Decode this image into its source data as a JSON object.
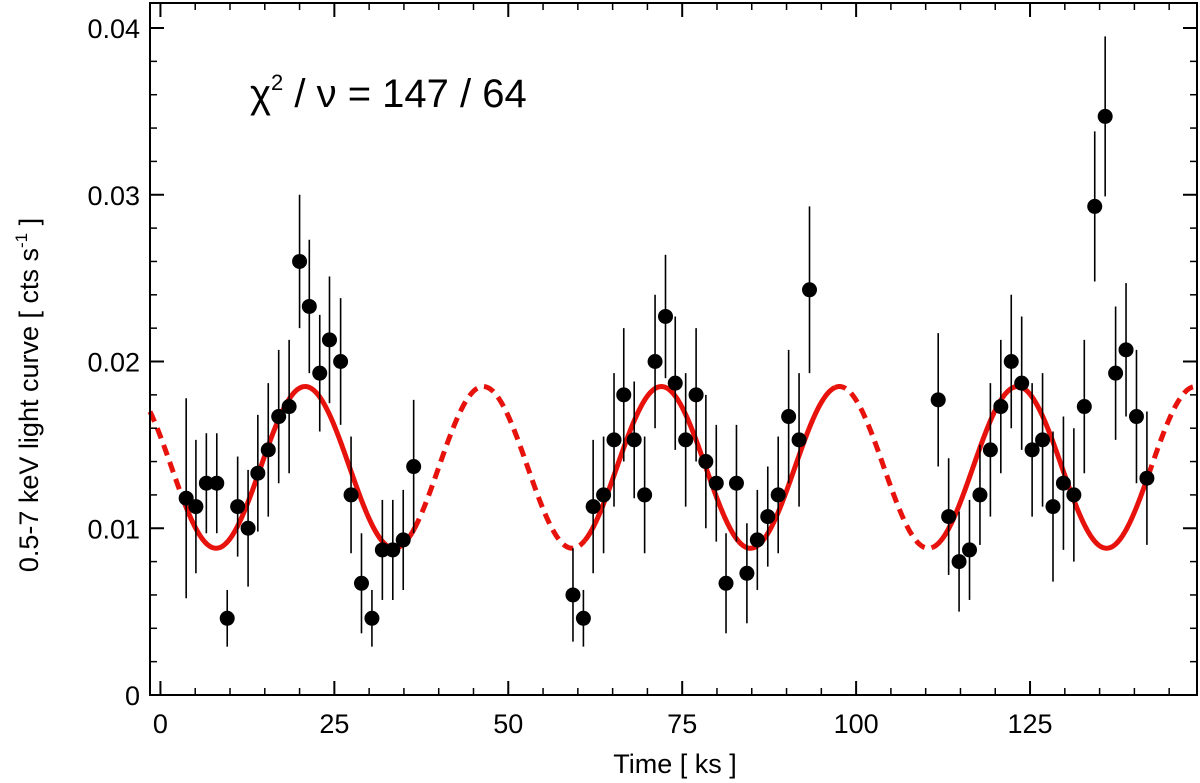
{
  "chart_data": {
    "type": "scatter",
    "title": "",
    "xlabel": "Time [ ks ]",
    "ylabel_main": "0.5-7 keV light curve [ cts s",
    "ylabel_sup": "-1",
    "ylabel_end": " ]",
    "xlim": [
      -1.5,
      149
    ],
    "ylim": [
      0,
      0.0415
    ],
    "xticks": [
      0,
      25,
      50,
      75,
      100,
      125
    ],
    "xtick_labels": [
      "0",
      "25",
      "50",
      "75",
      "100",
      "125"
    ],
    "yticks": [
      0,
      0.01,
      0.02,
      0.03,
      0.04
    ],
    "ytick_labels": [
      "0",
      "0.01",
      "0.02",
      "0.03",
      "0.04"
    ],
    "annotation": {
      "chi": "χ",
      "sup": "2",
      "rest": " / ν = 147 / 64"
    },
    "model": {
      "name": "sinusoid",
      "mean": 0.01365,
      "amplitude": 0.00485,
      "period_ks": 25.6,
      "peak_time_ks": 20.8,
      "color": "#e8120c",
      "solid_segments": [
        [
          3.5,
          36.5
        ],
        [
          61.0,
          97.0
        ],
        [
          111.0,
          142.0
        ]
      ],
      "dashed_segments": [
        [
          -1.5,
          3.5
        ],
        [
          36.5,
          61.0
        ],
        [
          97.0,
          111.0
        ],
        [
          142.0,
          149.0
        ]
      ]
    },
    "series": [
      {
        "name": "data",
        "color": "#000000",
        "x": [
          3.7,
          5.1,
          6.6,
          8.1,
          9.6,
          11.1,
          12.6,
          14.0,
          15.5,
          17.0,
          18.5,
          20.0,
          21.4,
          22.9,
          24.3,
          25.9,
          27.4,
          28.9,
          30.4,
          31.9,
          33.4,
          34.9,
          36.4,
          59.3,
          60.8,
          62.2,
          63.7,
          65.2,
          66.6,
          68.1,
          69.6,
          71.1,
          72.6,
          74.0,
          75.5,
          77.0,
          78.4,
          79.9,
          81.3,
          82.8,
          84.3,
          85.8,
          87.3,
          88.8,
          90.3,
          91.8,
          93.3,
          111.8,
          113.3,
          114.8,
          116.3,
          117.8,
          119.3,
          120.8,
          122.3,
          123.8,
          125.3,
          126.8,
          128.3,
          129.8,
          131.3,
          132.8,
          134.3,
          135.8,
          137.3,
          138.8,
          140.3,
          141.8
        ],
        "y": [
          0.0118,
          0.0113,
          0.0127,
          0.0127,
          0.0046,
          0.0113,
          0.01,
          0.0133,
          0.0147,
          0.0167,
          0.0173,
          0.026,
          0.0233,
          0.0193,
          0.0213,
          0.02,
          0.012,
          0.0067,
          0.0046,
          0.0087,
          0.0087,
          0.0093,
          0.0137,
          0.006,
          0.0046,
          0.0113,
          0.012,
          0.0153,
          0.018,
          0.0153,
          0.012,
          0.02,
          0.0227,
          0.0187,
          0.0153,
          0.018,
          0.014,
          0.0127,
          0.0067,
          0.0127,
          0.0073,
          0.0093,
          0.0107,
          0.012,
          0.0167,
          0.0153,
          0.0243,
          0.0177,
          0.0107,
          0.008,
          0.0087,
          0.012,
          0.0147,
          0.0173,
          0.02,
          0.0187,
          0.0147,
          0.0153,
          0.0113,
          0.0127,
          0.012,
          0.0173,
          0.0293,
          0.0347,
          0.0193,
          0.0207,
          0.0167,
          0.013
        ],
        "yerr": [
          0.006,
          0.004,
          0.003,
          0.003,
          0.0017,
          0.003,
          0.0035,
          0.0035,
          0.004,
          0.004,
          0.004,
          0.004,
          0.004,
          0.0035,
          0.0038,
          0.0038,
          0.0035,
          0.003,
          0.0017,
          0.003,
          0.003,
          0.003,
          0.004,
          0.0028,
          0.0017,
          0.004,
          0.0035,
          0.004,
          0.004,
          0.0035,
          0.0035,
          0.004,
          0.0037,
          0.004,
          0.004,
          0.004,
          0.004,
          0.0035,
          0.003,
          0.0035,
          0.003,
          0.003,
          0.003,
          0.0035,
          0.004,
          0.004,
          0.005,
          0.004,
          0.0035,
          0.003,
          0.003,
          0.003,
          0.004,
          0.004,
          0.004,
          0.004,
          0.004,
          0.004,
          0.0045,
          0.004,
          0.004,
          0.004,
          0.0045,
          0.0048,
          0.004,
          0.004,
          0.004,
          0.004
        ]
      }
    ]
  }
}
